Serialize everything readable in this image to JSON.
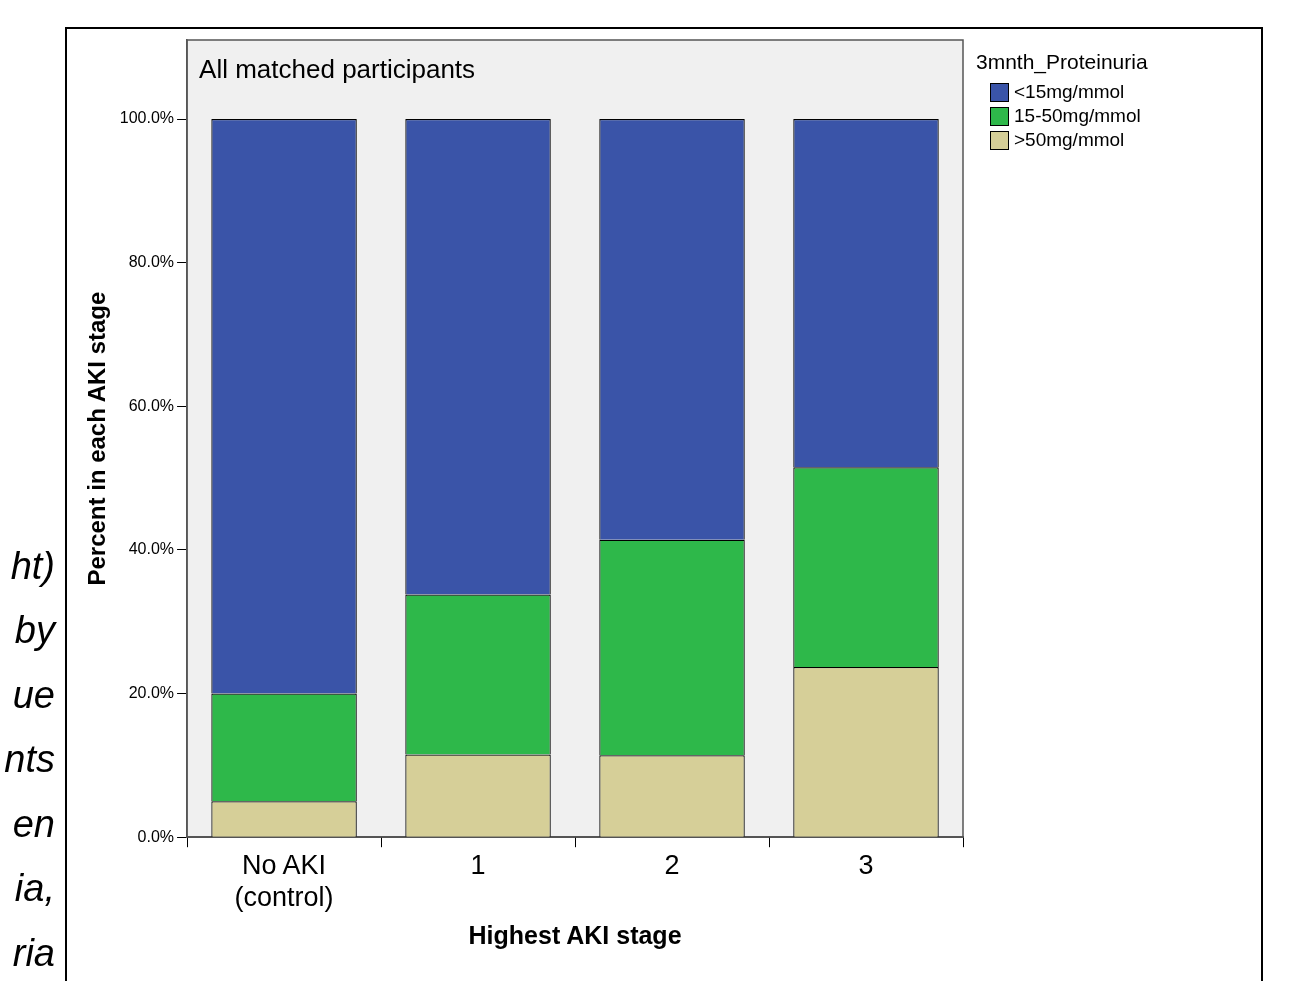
{
  "chart_data": {
    "type": "bar",
    "stacked": true,
    "title": "All matched participants",
    "xlabel": "Highest AKI stage",
    "ylabel": "Percent in each AKI stage",
    "legend_title": "3mnth_Proteinuria",
    "legend": "top right",
    "grid": false,
    "categories": [
      "No AKI\n(control)",
      "1",
      "2",
      "3"
    ],
    "ylim": [
      0,
      111
    ],
    "yticks": [
      {
        "value": 0,
        "label": "0.0%"
      },
      {
        "value": 20,
        "label": "20.0%"
      },
      {
        "value": 40,
        "label": "40.0%"
      },
      {
        "value": 60,
        "label": "60.0%"
      },
      {
        "value": 80,
        "label": "80.0%"
      },
      {
        "value": 100,
        "label": "100.0%"
      }
    ],
    "series": [
      {
        "name": ">50mg/mmol",
        "color": "#d6cf98",
        "values": [
          5.0,
          11.5,
          11.4,
          23.7
        ]
      },
      {
        "name": "15-50mg/mmol",
        "color": "#2eb84a",
        "values": [
          15.0,
          22.3,
          30.0,
          27.8
        ]
      },
      {
        "name": "<15mg/mmol",
        "color": "#3a54a8",
        "values": [
          80.0,
          66.2,
          58.6,
          48.5
        ]
      }
    ],
    "annotations": [
      "ht)",
      "by",
      "ue",
      "nts",
      "en",
      "ia,",
      "ria"
    ]
  }
}
